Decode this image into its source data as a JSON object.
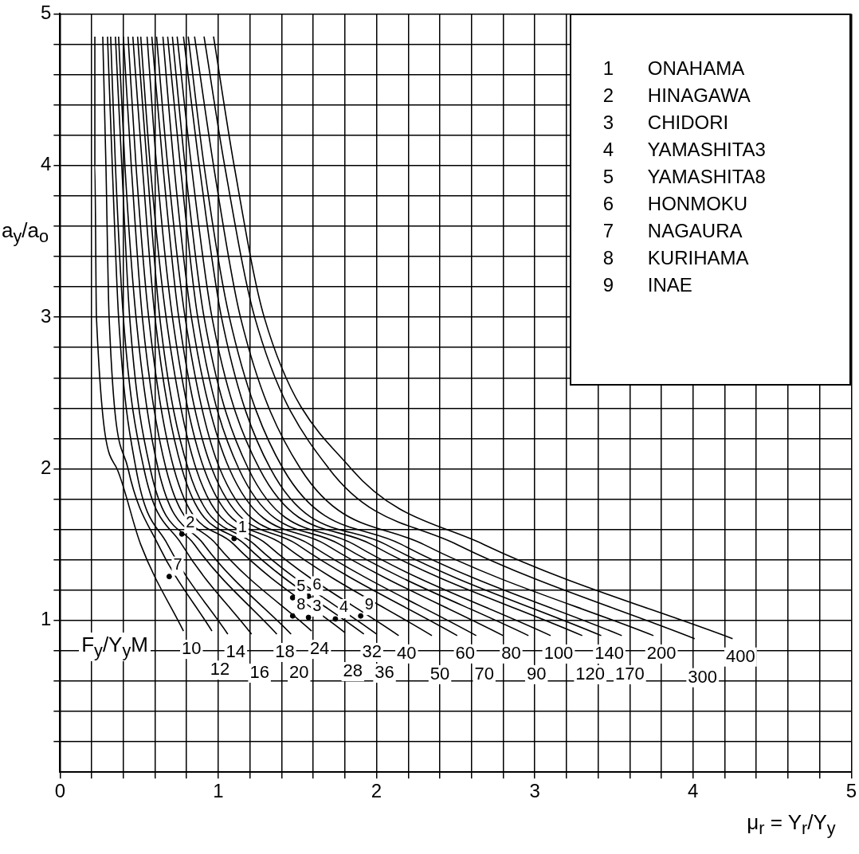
{
  "chart_data": {
    "type": "line",
    "xlabel": "μ$_{r}$ = Y$_{r}$/Y$_{y}$",
    "ylabel": "a$_{y}$/a$_{o}$",
    "legend_title": "F$_{y}$/Y$_{y}$M",
    "xlim": [
      0,
      5
    ],
    "ylim": [
      0,
      5
    ],
    "xticks": [
      0,
      {
        "value": 0.2,
        "label": null
      },
      {
        "value": 0.4,
        "label": null
      },
      {
        "value": 0.6,
        "label": null
      },
      {
        "value": 0.8,
        "label": null
      },
      1,
      {
        "value": 1.2,
        "label": null
      },
      {
        "value": 1.4,
        "label": null
      },
      {
        "value": 1.6,
        "label": null
      },
      {
        "value": 1.8,
        "label": null
      },
      2,
      {
        "value": 2.2,
        "label": null
      },
      {
        "value": 2.4,
        "label": null
      },
      {
        "value": 2.6,
        "label": null
      },
      {
        "value": 2.8,
        "label": null
      },
      3,
      {
        "value": 3.2,
        "label": null
      },
      {
        "value": 3.4,
        "label": null
      },
      {
        "value": 3.6,
        "label": null
      },
      {
        "value": 3.8,
        "label": null
      },
      4,
      {
        "value": 4.2,
        "label": null
      },
      {
        "value": 4.4,
        "label": null
      },
      {
        "value": 4.6,
        "label": null
      },
      {
        "value": 4.8,
        "label": null
      },
      5
    ],
    "yticks": [
      {
        "value": 0.2,
        "label": null
      },
      {
        "value": 0.4,
        "label": null
      },
      {
        "value": 0.6,
        "label": null
      },
      {
        "value": 0.8,
        "label": null
      },
      1,
      {
        "value": 1.2,
        "label": null
      },
      {
        "value": 1.4,
        "label": null
      },
      {
        "value": 1.6,
        "label": null
      },
      {
        "value": 1.8,
        "label": null
      },
      2,
      {
        "value": 2.2,
        "label": null
      },
      {
        "value": 2.4,
        "label": null
      },
      {
        "value": 2.6,
        "label": null
      },
      {
        "value": 2.8,
        "label": null
      },
      3,
      {
        "value": 3.2,
        "label": null
      },
      {
        "value": 3.4,
        "label": null
      },
      {
        "value": 3.6,
        "label": null
      },
      {
        "value": 3.8,
        "label": null
      },
      4,
      {
        "value": 4.2,
        "label": null
      },
      {
        "value": 4.4,
        "label": null
      },
      {
        "value": 4.6,
        "label": null
      },
      {
        "value": 4.8,
        "label": null
      },
      5
    ],
    "grid": true,
    "marker": "none",
    "annotations": [
      "1 ONAHAMA",
      "2 HINAGAWA",
      "3 CHIDORI",
      "4 YAMASHITA3",
      "5 YAMASHITA8",
      "6 HONMOKU",
      "7 NAGAURA",
      "8 KURIHAMA",
      "9 INAE",
      {
        "text": "1",
        "x": 1.1,
        "y": 1.54
      },
      {
        "text": "2",
        "x": 0.77,
        "y": 1.57
      },
      {
        "text": "3",
        "x": 1.57,
        "y": 1.02
      },
      {
        "text": "4",
        "x": 1.74,
        "y": 1.01
      },
      {
        "text": "5",
        "x": 1.47,
        "y": 1.15
      },
      {
        "text": "6",
        "x": 1.57,
        "y": 1.16
      },
      {
        "text": "7",
        "x": 0.69,
        "y": 1.29
      },
      {
        "text": "8",
        "x": 1.47,
        "y": 1.03
      },
      {
        "text": "9",
        "x": 1.9,
        "y": 1.03
      }
    ],
    "series": [
      {
        "name": "10",
        "color": "#000000",
        "x": [
          0.22,
          0.22,
          0.23,
          0.36,
          0.51,
          0.78
        ],
        "values": [
          4.85,
          4,
          3,
          2,
          1.5,
          0.93
        ]
      },
      {
        "name": "12",
        "color": "#000000",
        "x": [
          0.27,
          0.29,
          0.31,
          0.43,
          0.62,
          0.96
        ],
        "values": [
          4.85,
          4,
          3,
          2,
          1.5,
          0.93
        ]
      },
      {
        "name": "14",
        "color": "#000000",
        "x": [
          0.3,
          0.33,
          0.37,
          0.48,
          0.68,
          1.06
        ],
        "values": [
          4.85,
          4,
          3,
          2,
          1.5,
          0.91
        ]
      },
      {
        "name": "16",
        "color": "#000000",
        "x": [
          0.32,
          0.35,
          0.4,
          0.53,
          0.77,
          1.21
        ],
        "values": [
          4.85,
          4,
          3,
          2,
          1.5,
          0.91
        ]
      },
      {
        "name": "18",
        "color": "#000000",
        "x": [
          0.35,
          0.39,
          0.44,
          0.57,
          0.85,
          1.37
        ],
        "values": [
          4.85,
          4,
          3,
          2,
          1.5,
          0.91
        ]
      },
      {
        "name": "20",
        "color": "#000000",
        "x": [
          0.37,
          0.41,
          0.48,
          0.62,
          0.91,
          1.46
        ],
        "values": [
          4.85,
          4,
          3,
          2,
          1.5,
          0.91
        ]
      },
      {
        "name": "24",
        "color": "#000000",
        "x": [
          0.4,
          0.45,
          0.52,
          0.67,
          0.99,
          1.59
        ],
        "values": [
          4.85,
          4,
          3,
          2,
          1.5,
          0.93
        ]
      },
      {
        "name": "28",
        "color": "#000000",
        "x": [
          0.43,
          0.48,
          0.56,
          0.72,
          1.1,
          1.8
        ],
        "values": [
          4.85,
          4,
          3,
          2,
          1.5,
          0.92
        ]
      },
      {
        "name": "32",
        "color": "#000000",
        "x": [
          0.46,
          0.52,
          0.6,
          0.77,
          1.17,
          1.92
        ],
        "values": [
          4.85,
          4,
          3,
          2,
          1.5,
          0.91
        ]
      },
      {
        "name": "36",
        "color": "#000000",
        "x": [
          0.49,
          0.55,
          0.63,
          0.81,
          1.23,
          2.0
        ],
        "values": [
          4.85,
          4,
          3,
          2,
          1.5,
          0.91
        ]
      },
      {
        "name": "40",
        "color": "#000000",
        "x": [
          0.51,
          0.57,
          0.67,
          0.86,
          1.31,
          2.14
        ],
        "values": [
          4.85,
          4,
          3,
          2,
          1.5,
          0.9
        ]
      },
      {
        "name": "50",
        "color": "#000000",
        "x": [
          0.55,
          0.61,
          0.71,
          0.91,
          1.41,
          2.35
        ],
        "values": [
          4.85,
          4,
          3,
          2,
          1.5,
          0.9
        ]
      },
      {
        "name": "60",
        "color": "#000000",
        "x": [
          0.58,
          0.65,
          0.75,
          0.96,
          1.5,
          2.51
        ],
        "values": [
          4.85,
          4,
          3,
          2,
          1.5,
          0.9
        ]
      },
      {
        "name": "70",
        "color": "#000000",
        "x": [
          0.61,
          0.68,
          0.79,
          1.01,
          1.58,
          2.63
        ],
        "values": [
          4.85,
          4,
          3,
          2,
          1.5,
          0.9
        ]
      },
      {
        "name": "80",
        "color": "#000000",
        "x": [
          0.65,
          0.72,
          0.83,
          1.07,
          1.68,
          2.8
        ],
        "values": [
          4.85,
          4,
          3,
          2,
          1.5,
          0.9
        ]
      },
      {
        "name": "90",
        "color": "#000000",
        "x": [
          0.68,
          0.76,
          0.87,
          1.13,
          1.77,
          2.96
        ],
        "values": [
          4.85,
          4,
          3,
          2,
          1.5,
          0.9
        ]
      },
      {
        "name": "100",
        "color": "#000000",
        "x": [
          0.71,
          0.79,
          0.91,
          1.19,
          1.86,
          3.1
        ],
        "values": [
          4.85,
          4,
          3,
          2,
          1.5,
          0.9
        ]
      },
      {
        "name": "120",
        "color": "#000000",
        "x": [
          0.74,
          0.83,
          0.96,
          1.26,
          1.97,
          3.3
        ],
        "values": [
          4.85,
          4,
          3,
          2,
          1.5,
          0.9
        ]
      },
      {
        "name": "140",
        "color": "#000000",
        "x": [
          0.78,
          0.88,
          1.02,
          1.33,
          2.06,
          3.42
        ],
        "values": [
          4.85,
          4,
          3,
          2,
          1.5,
          0.9
        ]
      },
      {
        "name": "170",
        "color": "#000000",
        "x": [
          0.81,
          0.91,
          1.07,
          1.41,
          2.16,
          3.55
        ],
        "values": [
          4.85,
          4,
          3,
          2,
          1.5,
          0.9
        ]
      },
      {
        "name": "200",
        "color": "#000000",
        "x": [
          0.85,
          0.97,
          1.14,
          1.52,
          2.3,
          3.75
        ],
        "values": [
          4.85,
          4,
          3,
          2,
          1.5,
          0.9
        ]
      },
      {
        "name": "300",
        "color": "#000000",
        "x": [
          0.91,
          1.04,
          1.23,
          1.7,
          2.51,
          4.01
        ],
        "values": [
          4.85,
          4,
          3,
          2,
          1.5,
          0.88
        ]
      },
      {
        "name": "400",
        "color": "#000000",
        "x": [
          0.97,
          1.1,
          1.29,
          1.84,
          2.68,
          4.25
        ],
        "values": [
          4.85,
          4,
          3,
          2,
          1.5,
          0.88
        ]
      },
      {
        "type": "scatter",
        "marker": "circle",
        "color": "#000000",
        "x": [
          1.1,
          0.77,
          1.57,
          1.74,
          1.47,
          1.57,
          0.69,
          1.47,
          1.9
        ],
        "values": [
          1.54,
          1.57,
          1.02,
          1.01,
          1.15,
          1.16,
          1.29,
          1.03,
          1.03
        ]
      }
    ]
  }
}
